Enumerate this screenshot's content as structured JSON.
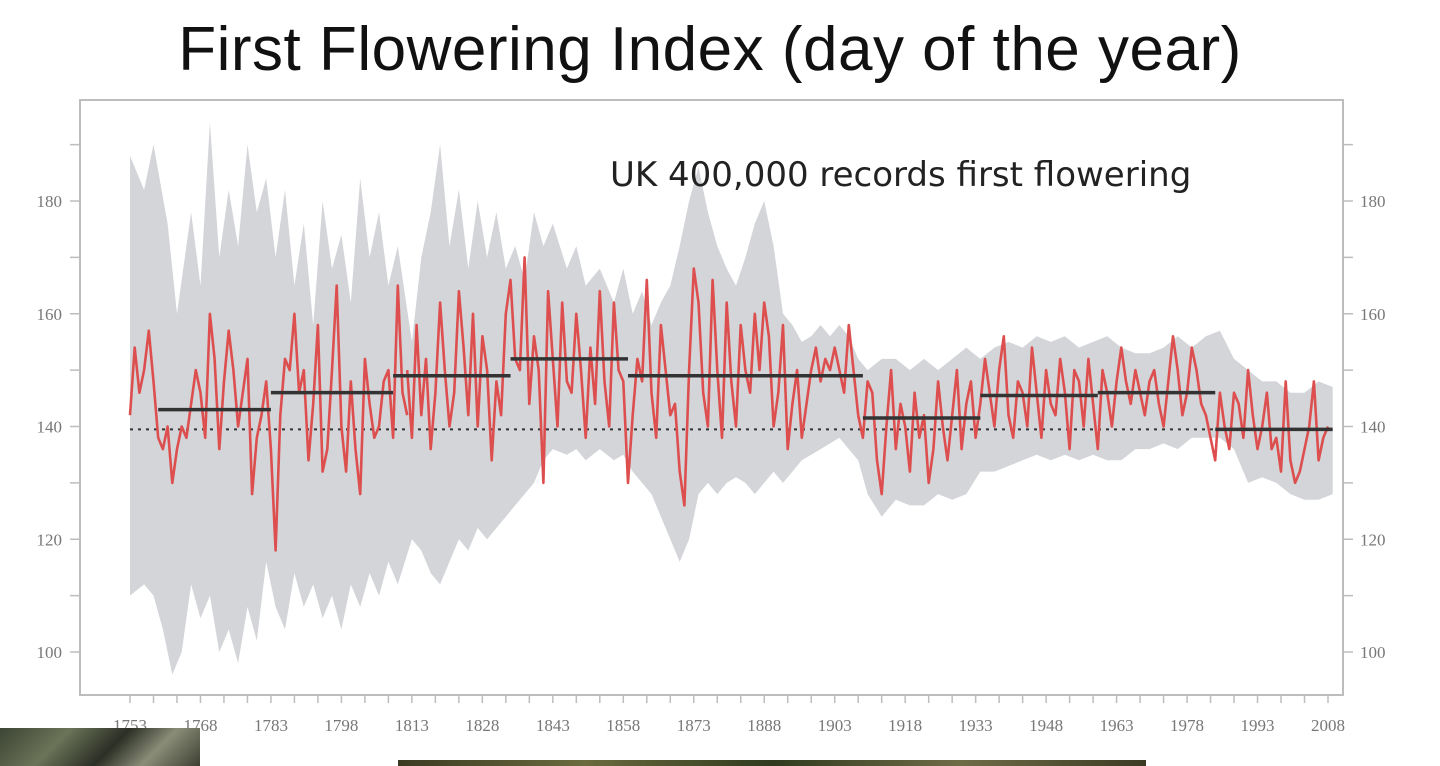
{
  "title": "First Flowering Index (day of the year)",
  "annotation": "UK 400,000 records first flowering",
  "colors": {
    "series": "#dd4f4f",
    "band": "#d3d5d9",
    "mean": "#333333",
    "baseline": "#333333"
  },
  "chart_data": {
    "type": "line",
    "title": "First Flowering Index (day of the year)",
    "xlabel": "",
    "ylabel": "",
    "xlim": [
      1751,
      2010
    ],
    "ylim": [
      90,
      195
    ],
    "y_ticks": [
      100,
      120,
      140,
      160,
      180
    ],
    "x_ticks": [
      1753,
      1768,
      1783,
      1798,
      1813,
      1828,
      1843,
      1858,
      1873,
      1888,
      1903,
      1918,
      1933,
      1948,
      1963,
      1978,
      1993,
      2008
    ],
    "baseline": 139.5,
    "band_upper": [
      [
        1753,
        188
      ],
      [
        1756,
        182
      ],
      [
        1758,
        190
      ],
      [
        1761,
        176
      ],
      [
        1763,
        160
      ],
      [
        1766,
        178
      ],
      [
        1768,
        165
      ],
      [
        1770,
        194
      ],
      [
        1772,
        170
      ],
      [
        1774,
        182
      ],
      [
        1776,
        172
      ],
      [
        1778,
        190
      ],
      [
        1780,
        178
      ],
      [
        1782,
        184
      ],
      [
        1784,
        170
      ],
      [
        1786,
        182
      ],
      [
        1788,
        165
      ],
      [
        1790,
        176
      ],
      [
        1792,
        158
      ],
      [
        1794,
        180
      ],
      [
        1796,
        168
      ],
      [
        1798,
        174
      ],
      [
        1800,
        162
      ],
      [
        1802,
        184
      ],
      [
        1804,
        170
      ],
      [
        1806,
        178
      ],
      [
        1808,
        165
      ],
      [
        1810,
        172
      ],
      [
        1813,
        155
      ],
      [
        1815,
        170
      ],
      [
        1817,
        178
      ],
      [
        1819,
        190
      ],
      [
        1821,
        172
      ],
      [
        1823,
        182
      ],
      [
        1825,
        168
      ],
      [
        1827,
        180
      ],
      [
        1829,
        170
      ],
      [
        1831,
        178
      ],
      [
        1833,
        168
      ],
      [
        1835,
        172
      ],
      [
        1837,
        166
      ],
      [
        1839,
        178
      ],
      [
        1841,
        172
      ],
      [
        1843,
        176
      ],
      [
        1846,
        168
      ],
      [
        1848,
        172
      ],
      [
        1850,
        165
      ],
      [
        1853,
        168
      ],
      [
        1856,
        162
      ],
      [
        1858,
        168
      ],
      [
        1860,
        160
      ],
      [
        1862,
        164
      ],
      [
        1864,
        158
      ],
      [
        1866,
        162
      ],
      [
        1868,
        165
      ],
      [
        1870,
        172
      ],
      [
        1872,
        180
      ],
      [
        1874,
        186
      ],
      [
        1876,
        178
      ],
      [
        1878,
        172
      ],
      [
        1880,
        168
      ],
      [
        1882,
        165
      ],
      [
        1884,
        170
      ],
      [
        1886,
        176
      ],
      [
        1888,
        180
      ],
      [
        1890,
        172
      ],
      [
        1892,
        160
      ],
      [
        1894,
        158
      ],
      [
        1896,
        155
      ],
      [
        1898,
        156
      ],
      [
        1900,
        158
      ],
      [
        1902,
        156
      ],
      [
        1904,
        158
      ],
      [
        1906,
        156
      ],
      [
        1908,
        152
      ],
      [
        1910,
        150
      ],
      [
        1913,
        152
      ],
      [
        1916,
        152
      ],
      [
        1919,
        150
      ],
      [
        1922,
        152
      ],
      [
        1925,
        150
      ],
      [
        1928,
        152
      ],
      [
        1931,
        154
      ],
      [
        1934,
        152
      ],
      [
        1937,
        154
      ],
      [
        1940,
        155
      ],
      [
        1943,
        154
      ],
      [
        1946,
        156
      ],
      [
        1949,
        155
      ],
      [
        1952,
        156
      ],
      [
        1955,
        154
      ],
      [
        1958,
        155
      ],
      [
        1961,
        156
      ],
      [
        1964,
        154
      ],
      [
        1967,
        153
      ],
      [
        1970,
        153
      ],
      [
        1973,
        154
      ],
      [
        1976,
        156
      ],
      [
        1979,
        154
      ],
      [
        1982,
        156
      ],
      [
        1985,
        157
      ],
      [
        1988,
        152
      ],
      [
        1991,
        150
      ],
      [
        1994,
        148
      ],
      [
        1997,
        148
      ],
      [
        2000,
        146
      ],
      [
        2003,
        146
      ],
      [
        2006,
        148
      ],
      [
        2009,
        147
      ]
    ],
    "band_lower": [
      [
        2009,
        128
      ],
      [
        2006,
        127
      ],
      [
        2003,
        127
      ],
      [
        2000,
        128
      ],
      [
        1997,
        130
      ],
      [
        1994,
        131
      ],
      [
        1991,
        130
      ],
      [
        1988,
        136
      ],
      [
        1985,
        138
      ],
      [
        1982,
        138
      ],
      [
        1979,
        138
      ],
      [
        1976,
        136
      ],
      [
        1973,
        137
      ],
      [
        1970,
        136
      ],
      [
        1967,
        136
      ],
      [
        1964,
        134
      ],
      [
        1961,
        134
      ],
      [
        1958,
        135
      ],
      [
        1955,
        134
      ],
      [
        1952,
        135
      ],
      [
        1949,
        134
      ],
      [
        1946,
        135
      ],
      [
        1943,
        134
      ],
      [
        1940,
        133
      ],
      [
        1937,
        132
      ],
      [
        1934,
        132
      ],
      [
        1931,
        128
      ],
      [
        1928,
        127
      ],
      [
        1925,
        128
      ],
      [
        1922,
        126
      ],
      [
        1919,
        126
      ],
      [
        1916,
        127
      ],
      [
        1913,
        124
      ],
      [
        1910,
        128
      ],
      [
        1908,
        134
      ],
      [
        1906,
        136
      ],
      [
        1904,
        138
      ],
      [
        1902,
        137
      ],
      [
        1900,
        136
      ],
      [
        1898,
        135
      ],
      [
        1896,
        134
      ],
      [
        1894,
        132
      ],
      [
        1892,
        130
      ],
      [
        1890,
        132
      ],
      [
        1888,
        130
      ],
      [
        1886,
        128
      ],
      [
        1884,
        130
      ],
      [
        1882,
        131
      ],
      [
        1880,
        130
      ],
      [
        1878,
        128
      ],
      [
        1876,
        130
      ],
      [
        1874,
        128
      ],
      [
        1872,
        120
      ],
      [
        1870,
        116
      ],
      [
        1868,
        120
      ],
      [
        1866,
        124
      ],
      [
        1864,
        128
      ],
      [
        1862,
        130
      ],
      [
        1860,
        132
      ],
      [
        1858,
        135
      ],
      [
        1856,
        134
      ],
      [
        1853,
        136
      ],
      [
        1850,
        134
      ],
      [
        1848,
        136
      ],
      [
        1846,
        135
      ],
      [
        1843,
        136
      ],
      [
        1841,
        134
      ],
      [
        1839,
        130
      ],
      [
        1837,
        128
      ],
      [
        1835,
        126
      ],
      [
        1833,
        124
      ],
      [
        1831,
        122
      ],
      [
        1829,
        120
      ],
      [
        1827,
        122
      ],
      [
        1825,
        118
      ],
      [
        1823,
        120
      ],
      [
        1821,
        116
      ],
      [
        1819,
        112
      ],
      [
        1817,
        114
      ],
      [
        1815,
        118
      ],
      [
        1813,
        120
      ],
      [
        1810,
        112
      ],
      [
        1808,
        116
      ],
      [
        1806,
        110
      ],
      [
        1804,
        114
      ],
      [
        1802,
        108
      ],
      [
        1800,
        112
      ],
      [
        1798,
        104
      ],
      [
        1796,
        110
      ],
      [
        1794,
        106
      ],
      [
        1792,
        112
      ],
      [
        1790,
        108
      ],
      [
        1788,
        114
      ],
      [
        1786,
        104
      ],
      [
        1784,
        108
      ],
      [
        1782,
        116
      ],
      [
        1780,
        102
      ],
      [
        1778,
        108
      ],
      [
        1776,
        98
      ],
      [
        1774,
        104
      ],
      [
        1772,
        100
      ],
      [
        1770,
        110
      ],
      [
        1768,
        106
      ],
      [
        1766,
        112
      ],
      [
        1764,
        100
      ],
      [
        1762,
        96
      ],
      [
        1760,
        104
      ],
      [
        1758,
        110
      ],
      [
        1756,
        112
      ],
      [
        1753,
        110
      ]
    ],
    "series": [
      {
        "x": [
          1753,
          1754,
          1755,
          1756,
          1757,
          1758,
          1759,
          1760,
          1761,
          1762,
          1763,
          1764,
          1765,
          1766,
          1767,
          1768,
          1769,
          1770,
          1771,
          1772,
          1773,
          1774,
          1775,
          1776,
          1777,
          1778,
          1779,
          1780,
          1781,
          1782,
          1783,
          1784,
          1785,
          1786,
          1787,
          1788,
          1789,
          1790,
          1791,
          1792,
          1793,
          1794,
          1795,
          1796,
          1797,
          1798,
          1799,
          1800,
          1801,
          1802,
          1803,
          1804,
          1805,
          1806,
          1807,
          1808,
          1809,
          1810,
          1811,
          1812
        ],
        "values": [
          142,
          154,
          146,
          150,
          157,
          148,
          138,
          136,
          140,
          130,
          136,
          140,
          138,
          144,
          150,
          146,
          138,
          160,
          152,
          136,
          148,
          157,
          150,
          140,
          146,
          152,
          128,
          138,
          142,
          148,
          136,
          118,
          142,
          152,
          150,
          160,
          146,
          150,
          134,
          144,
          158,
          132,
          136,
          150,
          165,
          140,
          132,
          148,
          136,
          128,
          152,
          144,
          138,
          140,
          148,
          150,
          138,
          165,
          146,
          142
        ]
      },
      {
        "x": [
          1812,
          1813,
          1814,
          1815,
          1816,
          1817,
          1818,
          1819,
          1820,
          1821,
          1822,
          1823,
          1824,
          1825,
          1826,
          1827,
          1828,
          1829,
          1830,
          1831,
          1832,
          1833,
          1834,
          1835,
          1836,
          1837,
          1838,
          1839,
          1840,
          1841,
          1842,
          1843,
          1844,
          1845,
          1846,
          1847,
          1848,
          1849,
          1850,
          1851,
          1852,
          1853,
          1854,
          1855,
          1856,
          1857,
          1858,
          1859,
          1860,
          1861,
          1862,
          1863,
          1864,
          1865,
          1866,
          1867,
          1868,
          1869,
          1870,
          1871,
          1872,
          1873,
          1874,
          1875,
          1876,
          1877,
          1878,
          1879,
          1880,
          1881,
          1882,
          1883,
          1884,
          1885,
          1886,
          1887,
          1888,
          1889,
          1890,
          1891,
          1892,
          1893,
          1894,
          1895,
          1896,
          1897,
          1898,
          1899,
          1900,
          1901,
          1902,
          1903,
          1904,
          1905,
          1906,
          1907,
          1908
        ],
        "values": [
          150,
          138,
          158,
          142,
          152,
          136,
          146,
          162,
          150,
          140,
          146,
          164,
          154,
          142,
          160,
          140,
          156,
          150,
          134,
          148,
          142,
          160,
          166,
          152,
          150,
          170,
          144,
          156,
          150,
          130,
          164,
          152,
          140,
          162,
          148,
          146,
          160,
          150,
          138,
          154,
          144,
          164,
          148,
          140,
          162,
          150,
          148,
          130,
          142,
          152,
          148,
          166,
          146,
          138,
          158,
          150,
          142,
          144,
          132,
          126,
          150,
          168,
          162,
          146,
          140,
          166,
          150,
          138,
          162,
          148,
          140,
          158,
          150,
          146,
          160,
          150,
          162,
          156,
          140,
          146,
          158,
          136,
          144,
          150,
          138,
          144,
          150,
          154,
          148,
          152,
          150,
          154,
          150,
          146,
          158,
          150,
          142
        ]
      },
      {
        "x": [
          1908,
          1909,
          1910,
          1911,
          1912,
          1913,
          1914,
          1915,
          1916,
          1917,
          1918,
          1919,
          1920,
          1921,
          1922,
          1923,
          1924,
          1925,
          1926,
          1927,
          1928,
          1929,
          1930,
          1931,
          1932,
          1933,
          1934,
          1935,
          1936,
          1937,
          1938,
          1939,
          1940,
          1941,
          1942,
          1943,
          1944,
          1945,
          1946,
          1947,
          1948,
          1949,
          1950,
          1951,
          1952,
          1953,
          1954,
          1955,
          1956,
          1957,
          1958,
          1959,
          1960,
          1961,
          1962,
          1963,
          1964,
          1965,
          1966,
          1967,
          1968,
          1969,
          1970,
          1971,
          1972,
          1973,
          1974,
          1975,
          1976,
          1977,
          1978,
          1979,
          1980,
          1981,
          1982,
          1983,
          1984,
          1985,
          1986,
          1987,
          1988,
          1989,
          1990,
          1991,
          1992,
          1993,
          1994,
          1995,
          1996,
          1997,
          1998,
          1999,
          2000,
          2001,
          2002,
          2003,
          2004,
          2005,
          2006,
          2007,
          2008
        ],
        "values": [
          142,
          138,
          148,
          146,
          134,
          128,
          140,
          150,
          136,
          144,
          140,
          132,
          146,
          138,
          142,
          130,
          136,
          148,
          140,
          134,
          142,
          150,
          136,
          144,
          148,
          138,
          144,
          152,
          146,
          140,
          150,
          156,
          142,
          138,
          148,
          146,
          140,
          154,
          146,
          138,
          150,
          144,
          142,
          152,
          146,
          136,
          150,
          148,
          140,
          152,
          144,
          136,
          150,
          146,
          140,
          148,
          154,
          148,
          144,
          150,
          146,
          142,
          148,
          150,
          144,
          140,
          148,
          156,
          150,
          142,
          146,
          154,
          150,
          144,
          142,
          138,
          134,
          146,
          140,
          136,
          146,
          144,
          138,
          150,
          142,
          136,
          140,
          146,
          136,
          138,
          132,
          148,
          134,
          130,
          132,
          136,
          140,
          148,
          134,
          138,
          140
        ]
      }
    ],
    "period_means": [
      {
        "x0": 1759,
        "x1": 1783,
        "y": 143
      },
      {
        "x0": 1783,
        "x1": 1809,
        "y": 146
      },
      {
        "x0": 1809,
        "x1": 1834,
        "y": 149
      },
      {
        "x0": 1834,
        "x1": 1859,
        "y": 152
      },
      {
        "x0": 1859,
        "x1": 1909,
        "y": 149
      },
      {
        "x0": 1909,
        "x1": 1934,
        "y": 141.5
      },
      {
        "x0": 1934,
        "x1": 1959,
        "y": 145.5
      },
      {
        "x0": 1959,
        "x1": 1984,
        "y": 146
      },
      {
        "x0": 1984,
        "x1": 2009,
        "y": 139.5
      }
    ]
  }
}
